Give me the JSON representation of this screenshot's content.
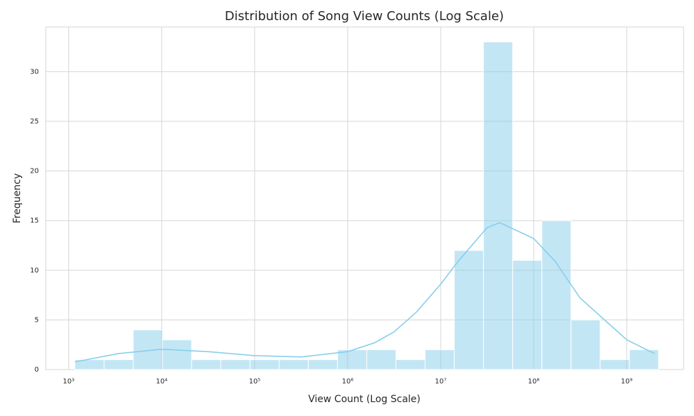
{
  "chart_data": {
    "type": "histogram",
    "title": "Distribution of Song View Counts (Log Scale)",
    "x_label": "View Count (Log Scale)",
    "y_label": "Frequency",
    "bins": [
      1167,
      2404,
      4943,
      10190,
      20990,
      43250,
      89130,
      183200,
      377600,
      778000,
      1603000,
      3304000,
      6792000,
      14000000,
      28840000,
      59430000,
      122400000,
      251800000,
      518800000,
      1069000000,
      2203000000
    ],
    "values": [
      1,
      1,
      4,
      3,
      1,
      1,
      1,
      1,
      1,
      2,
      2,
      1,
      2,
      12,
      33,
      11,
      15,
      5,
      1,
      2
    ],
    "color": "#87ceeb",
    "kde": {
      "color": "#87ceeb",
      "x": [
        1167,
        3400,
        10000,
        31600,
        100000,
        316000,
        1000000,
        1950000,
        3160000,
        5500000,
        10000000,
        15400000,
        31600000,
        43000000,
        100000000,
        170000000,
        316000000,
        1000000000,
        2000000000
      ],
      "values": [
        0.77,
        1.6,
        2.05,
        1.8,
        1.4,
        1.27,
        1.8,
        2.7,
        3.8,
        5.8,
        8.6,
        10.9,
        14.3,
        14.8,
        13.2,
        10.9,
        7.2,
        3.0,
        1.6
      ]
    },
    "xscale": "log",
    "xlim": [
      568,
      4090000000
    ],
    "xticks": [
      {
        "value": 1000,
        "label": "10³"
      },
      {
        "value": 10000,
        "label": "10⁴"
      },
      {
        "value": 100000,
        "label": "10⁵"
      },
      {
        "value": 1000000,
        "label": "10⁶"
      },
      {
        "value": 10000000,
        "label": "10⁷"
      },
      {
        "value": 100000000,
        "label": "10⁸"
      },
      {
        "value": 1000000000,
        "label": "10⁹"
      }
    ],
    "ylim": [
      0,
      34.5
    ],
    "yticks": [
      0,
      5,
      10,
      15,
      20,
      25,
      30
    ],
    "grid": true
  }
}
